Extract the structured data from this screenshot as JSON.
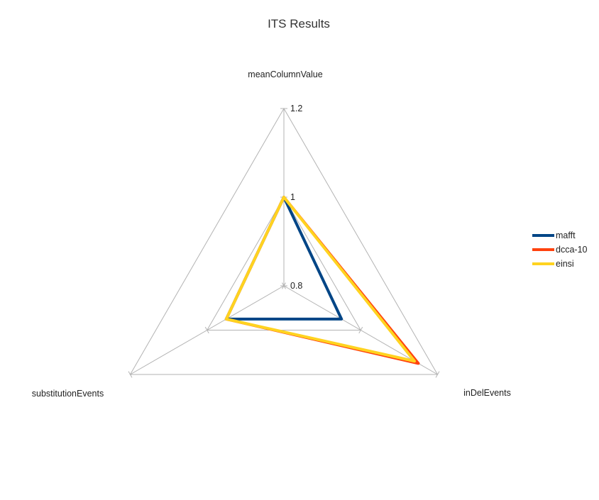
{
  "chart_data": {
    "type": "radar",
    "title": "ITS Results",
    "axes": [
      "meanColumnValue",
      "inDelEvents",
      "substitutionEvents"
    ],
    "rlim": [
      0.8,
      1.2
    ],
    "ticks": [
      0.8,
      1,
      1.2
    ],
    "tick_labels": [
      "0.8",
      "1",
      "1.2"
    ],
    "grid": true,
    "legend_position": "right",
    "series": [
      {
        "name": "mafft",
        "color": "#004586",
        "values": [
          1.0,
          0.95,
          0.95
        ]
      },
      {
        "name": "dcca-10",
        "color": "#ff420e",
        "values": [
          1.0,
          1.15,
          0.95
        ]
      },
      {
        "name": "einsi",
        "color": "#ffd320",
        "values": [
          1.0,
          1.14,
          0.95
        ]
      }
    ]
  }
}
